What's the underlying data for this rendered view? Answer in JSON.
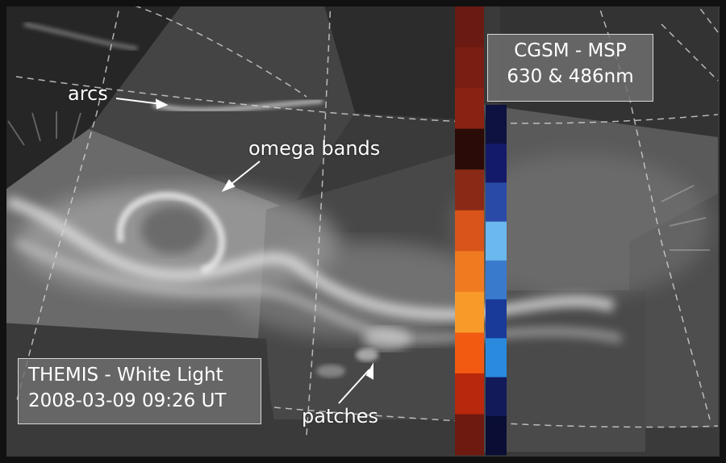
{
  "image": {
    "background_color": "#2b2b2b",
    "frame_color": "#111111"
  },
  "annotations": {
    "arcs": "arcs",
    "omega_bands": "omega bands",
    "patches": "patches"
  },
  "themis_box": {
    "line1": "THEMIS - White Light",
    "line2": "2008-03-09   09:26 UT"
  },
  "msp_box": {
    "line1": "CGSM - MSP",
    "line2": "630 & 486nm"
  },
  "msp_bars": {
    "red_630_colors": [
      "#6a1a12",
      "#7a1e14",
      "#8a2214",
      "#2a0b08",
      "#8a2a16",
      "#d8541a",
      "#f07a20",
      "#f89a2a",
      "#f25a12",
      "#b8280c",
      "#6e1a10"
    ],
    "blue_486_colors": [
      "#0e1240",
      "#141a6a",
      "#2a4aa8",
      "#6ab8ee",
      "#3a7acc",
      "#1a3a9a",
      "#2a8ade",
      "#121a5a",
      "#0a0e34"
    ]
  }
}
